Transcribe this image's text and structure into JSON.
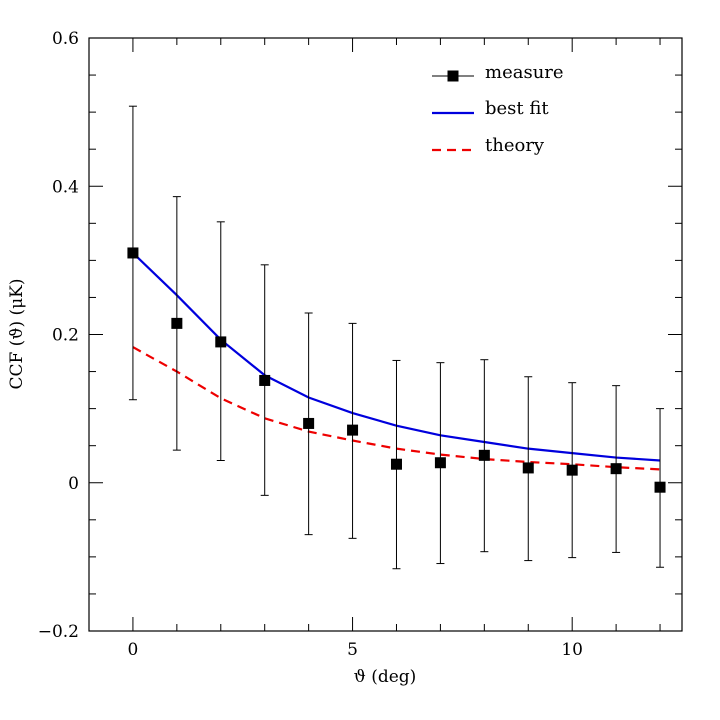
{
  "chart_data": {
    "type": "line",
    "xlabel": "ϑ (deg)",
    "ylabel": "CCF (ϑ)    (μK)",
    "xlim": [
      -1,
      12.5
    ],
    "ylim": [
      -0.2,
      0.6
    ],
    "x_ticks": [
      0,
      5,
      10
    ],
    "x_tick_labels": [
      "0",
      "5",
      "10"
    ],
    "y_ticks": [
      -0.2,
      0,
      0.2,
      0.4,
      0.6
    ],
    "y_tick_labels": [
      "−0.2",
      "0",
      "0.2",
      "0.4",
      "0.6"
    ],
    "legend_position": "top-right",
    "series": [
      {
        "name": "measure",
        "kind": "points-with-errorbars",
        "color": "#000000",
        "x": [
          0,
          1,
          2,
          3,
          4,
          5,
          6,
          7,
          8,
          9,
          10,
          11,
          12
        ],
        "y": [
          0.31,
          0.215,
          0.19,
          0.138,
          0.08,
          0.071,
          0.025,
          0.027,
          0.037,
          0.02,
          0.017,
          0.019,
          -0.006
        ],
        "y_low": [
          0.112,
          0.044,
          0.03,
          -0.017,
          -0.07,
          -0.075,
          -0.116,
          -0.109,
          -0.093,
          -0.105,
          -0.101,
          -0.094,
          -0.114
        ],
        "y_high": [
          0.508,
          0.386,
          0.352,
          0.294,
          0.229,
          0.215,
          0.165,
          0.162,
          0.166,
          0.143,
          0.135,
          0.131,
          0.1
        ]
      },
      {
        "name": "best fit",
        "kind": "solid-line",
        "color": "#0000dd",
        "x": [
          0,
          1,
          2,
          3,
          4,
          5,
          6,
          7,
          8,
          9,
          10,
          11,
          12
        ],
        "y": [
          0.31,
          0.253,
          0.193,
          0.145,
          0.115,
          0.094,
          0.077,
          0.064,
          0.055,
          0.046,
          0.04,
          0.034,
          0.03
        ]
      },
      {
        "name": "theory",
        "kind": "dashed-line",
        "color": "#ee0000",
        "x": [
          0,
          1,
          2,
          3,
          4,
          5,
          6,
          7,
          8,
          9,
          10,
          11,
          12
        ],
        "y": [
          0.183,
          0.15,
          0.114,
          0.087,
          0.069,
          0.057,
          0.046,
          0.038,
          0.032,
          0.028,
          0.025,
          0.021,
          0.018
        ]
      }
    ]
  }
}
